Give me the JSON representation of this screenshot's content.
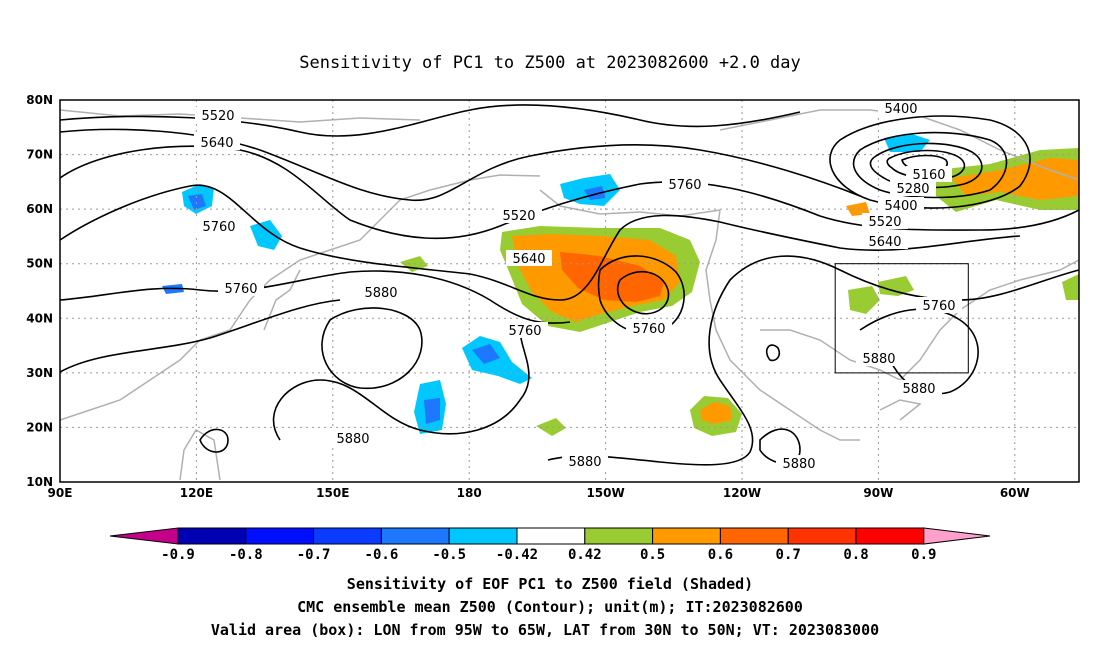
{
  "title": "Sensitivity of PC1 to Z500 at 2023082600 +2.0 day",
  "map": {
    "lon_range": [
      90,
      305
    ],
    "lat_range": [
      10,
      80
    ],
    "lat_ticks": [
      "80N",
      "70N",
      "60N",
      "50N",
      "40N",
      "30N",
      "20N",
      "10N"
    ],
    "lon_ticks": [
      "90E",
      "120E",
      "150E",
      "180",
      "150W",
      "120W",
      "90W",
      "60W"
    ],
    "valid_box": {
      "lon": [
        265,
        295
      ],
      "lat": [
        30,
        50
      ]
    },
    "grid": true
  },
  "contour_labels": [
    "5520",
    "5640",
    "5760",
    "5760",
    "5880",
    "5880",
    "5520",
    "5640",
    "5760",
    "5760",
    "5760",
    "5880",
    "5880",
    "5400",
    "5160",
    "5280",
    "5400",
    "5520",
    "5640",
    "5760",
    "5880",
    "5880"
  ],
  "colorbar": {
    "ticks": [
      "-0.9",
      "-0.8",
      "-0.7",
      "-0.6",
      "-0.5",
      "-0.42",
      "0.42",
      "0.5",
      "0.6",
      "0.7",
      "0.8",
      "0.9"
    ],
    "colors": [
      "#c2008a",
      "#0000b4",
      "#0010ff",
      "#0a3cff",
      "#1e78ff",
      "#00c8ff",
      "#ffffff",
      "#99cc33",
      "#ff9900",
      "#ff6600",
      "#ff3300",
      "#ff0000",
      "#ffa0cc"
    ]
  },
  "caption": {
    "line1": "Sensitivity of EOF PC1 to Z500 field (Shaded)",
    "line2": "CMC ensemble mean Z500 (Contour); unit(m); IT:2023082600",
    "line3": "Valid area (box): LON from 95W to 65W, LAT from 30N to 50N; VT: 2023083000"
  }
}
